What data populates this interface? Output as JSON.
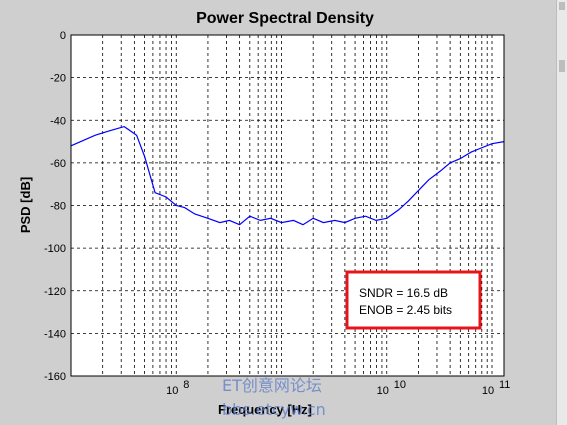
{
  "chart_data": {
    "type": "line",
    "title": "Power Spectral Density",
    "xlabel": "Frequency [Hz]",
    "ylabel": "PSD [dB]",
    "xscale": "log",
    "xlim": [
      10000000,
      130000000000
    ],
    "ylim": [
      -160,
      0
    ],
    "yticks": [
      "0",
      "-20",
      "-40",
      "-60",
      "-80",
      "-100",
      "-120",
      "-140",
      "-160"
    ],
    "xticks": [
      {
        "base": "10",
        "exp": "8",
        "value": 100000000
      },
      {
        "base": "10",
        "exp": "10",
        "value": 10000000000
      },
      {
        "base": "10",
        "exp": "11",
        "value": 100000000000
      }
    ],
    "grid": true,
    "line_color": "#0000ff",
    "series": [
      {
        "x": [
          10000000.0,
          17000000.0,
          23000000.0,
          32000000.0,
          42000000.0,
          50000000.0,
          58000000.0,
          63000000.0,
          80000000.0,
          100000000.0,
          120000000.0,
          150000000.0,
          200000000.0,
          260000000.0,
          320000000.0,
          400000000.0,
          500000000.0,
          630000000.0,
          790000000.0,
          1000000000.0,
          1300000000.0,
          1600000000.0,
          2000000000.0,
          2500000000.0,
          3200000000.0,
          4000000000.0,
          5000000000.0,
          6300000000.0,
          7900000000.0,
          10000000000.0,
          13000000000.0,
          16000000000.0,
          20000000000.0,
          25000000000.0,
          32000000000.0,
          40000000000.0,
          50000000000.0,
          63000000000.0,
          79000000000.0,
          100000000000.0,
          130000000000.0
        ],
        "y": [
          -52,
          -47,
          -45,
          -43,
          -47,
          -57,
          -68,
          -74,
          -76,
          -80,
          -81,
          -84,
          -86,
          -88,
          -87,
          -89,
          -85,
          -87,
          -86,
          -88,
          -87,
          -89,
          -86,
          -88,
          -87,
          -88,
          -86,
          -85,
          -87,
          -86,
          -82,
          -78,
          -73,
          -68,
          -64,
          -60,
          -58,
          -55,
          -53,
          -51,
          -50
        ]
      }
    ],
    "annotation": {
      "lines": [
        "SNDR = 16.5 dB",
        "ENOB = 2.45 bits"
      ],
      "border_color": "#e8141c"
    }
  },
  "watermark": {
    "line1": "ET创意网论坛",
    "line2": "bbs.etcyw.cn"
  }
}
